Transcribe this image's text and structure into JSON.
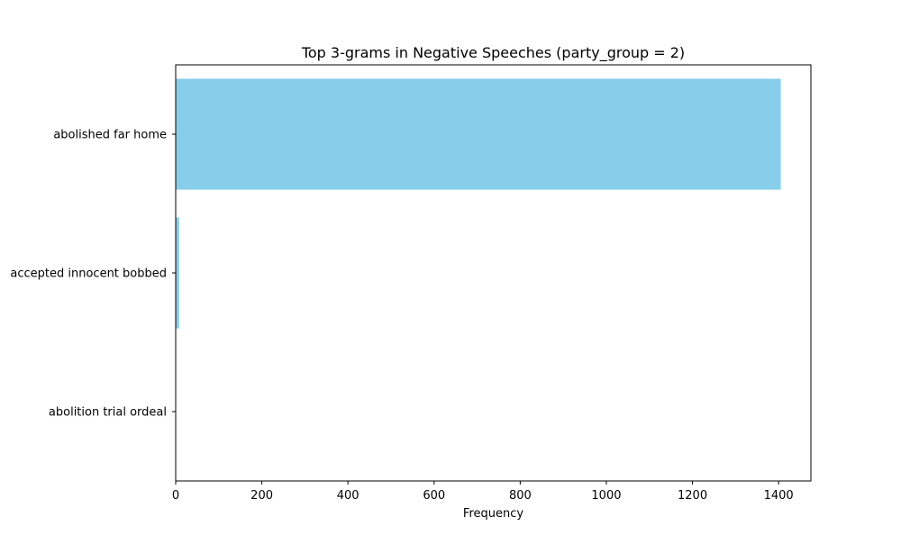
{
  "chart_data": {
    "type": "bar",
    "orientation": "horizontal",
    "title": "Top 3-grams in Negative Speeches (party_group = 2)",
    "xlabel": "Frequency",
    "ylabel": "",
    "categories": [
      "abolished far home",
      "accepted innocent bobbed",
      "abolition trial ordeal"
    ],
    "values": [
      1405,
      8,
      1
    ],
    "xlim": [
      0,
      1475
    ],
    "xticks": [
      0,
      200,
      400,
      600,
      800,
      1000,
      1200,
      1400
    ],
    "grid": false,
    "legend": "none",
    "bar_color": "#87ceeb"
  }
}
